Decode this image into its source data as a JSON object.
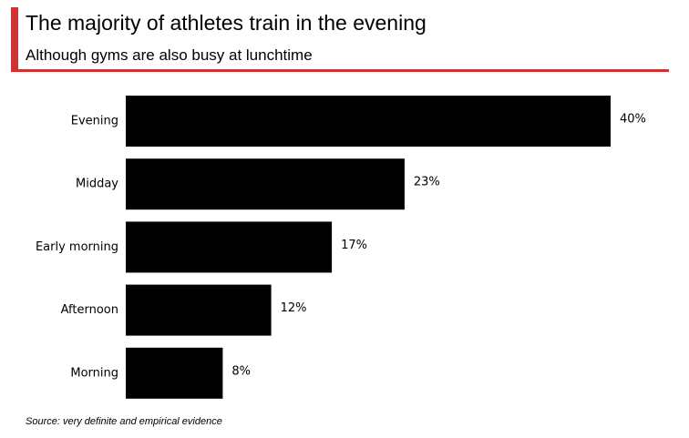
{
  "header": {
    "title": "The majority of athletes train in the evening",
    "subtitle": "Although gyms are also busy at lunchtime",
    "accent_color": "#cc3333"
  },
  "footer": {
    "source": "Source: very definite and empirical evidence"
  },
  "chart_data": {
    "type": "bar",
    "orientation": "horizontal",
    "title": "The majority of athletes train in the evening",
    "subtitle": "Although gyms are also busy at lunchtime",
    "categories": [
      "Evening",
      "Midday",
      "Early morning",
      "Afternoon",
      "Morning"
    ],
    "values": [
      40,
      23,
      17,
      12,
      8
    ],
    "value_labels": [
      "40%",
      "23%",
      "17%",
      "12%",
      "8%"
    ],
    "unit": "%",
    "xlim": [
      0,
      40
    ],
    "bar_color": "#000000",
    "grid": false,
    "legend": "none"
  }
}
